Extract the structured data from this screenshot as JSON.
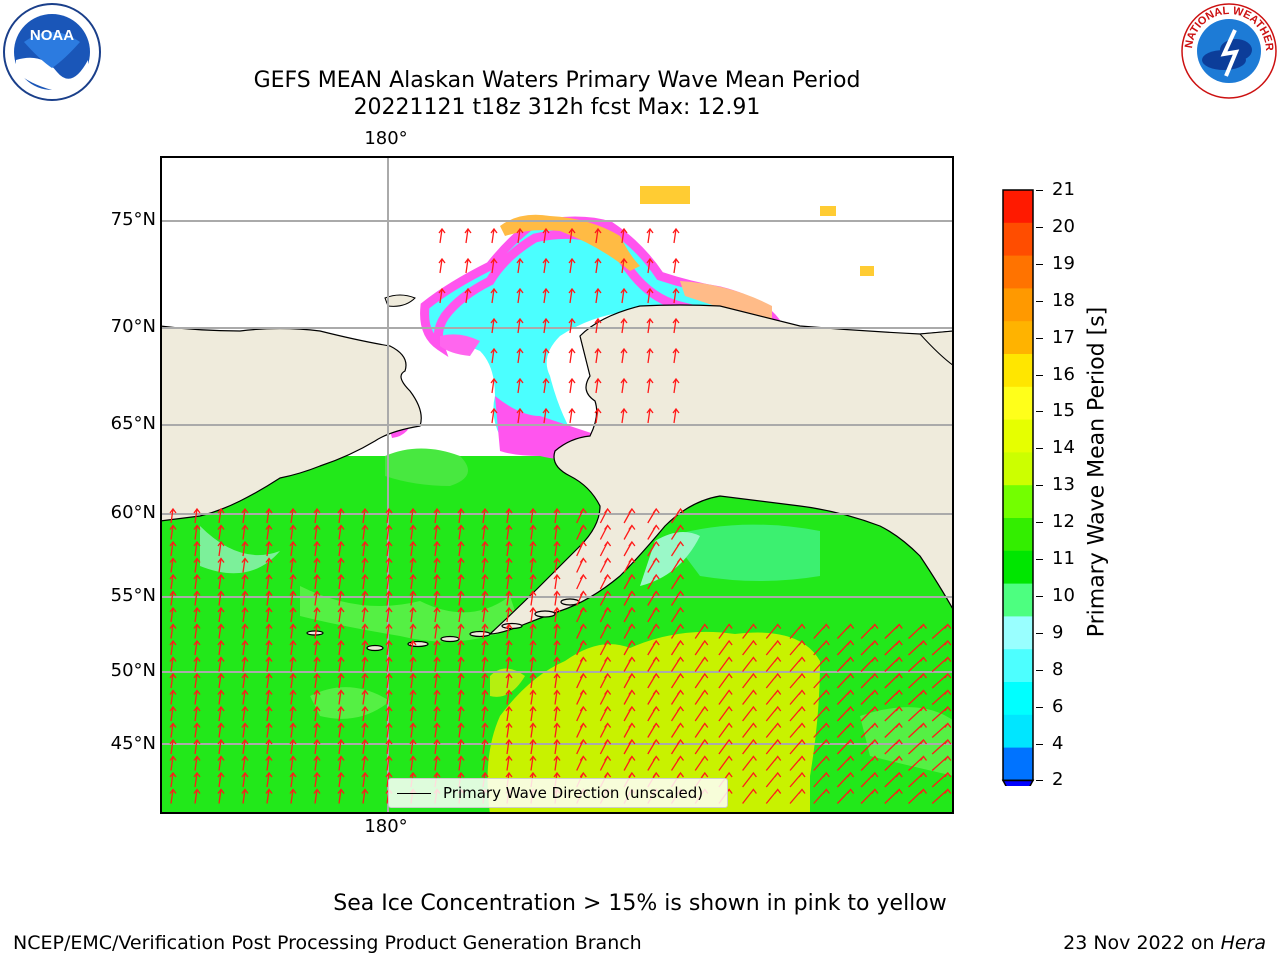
{
  "title": {
    "line1": "GEFS MEAN Alaskan Waters Primary Wave Mean Period",
    "line2": "20221121 t18z 312h fcst   Max: 12.91"
  },
  "logos": {
    "left": {
      "text": "NOAA",
      "icon": "noaa-logo-icon"
    },
    "right": {
      "text": "NATIONAL WEATHER SERVICE",
      "icon": "nws-logo-icon"
    }
  },
  "map": {
    "lon_labels": [
      "180°",
      "180°"
    ],
    "lat_labels": [
      "75°N",
      "70°N",
      "65°N",
      "60°N",
      "55°N",
      "50°N",
      "45°N"
    ],
    "legend_label": "Primary Wave Direction (unscaled)"
  },
  "colorbar": {
    "label": "Primary Wave Mean Period [s]",
    "ticks": [
      "21",
      "20",
      "19",
      "18",
      "17",
      "16",
      "15",
      "14",
      "13",
      "12",
      "11",
      "10",
      "9",
      "8",
      "6",
      "4",
      "2"
    ],
    "colors": [
      "#ff1a00",
      "#ff4d00",
      "#ff7300",
      "#ff9900",
      "#ffb300",
      "#ffe600",
      "#ffff1a",
      "#e6ff00",
      "#ccff00",
      "#73ff00",
      "#33ee00",
      "#00e600",
      "#4dff80",
      "#99ffff",
      "#4dffff",
      "#00ffff",
      "#00e6ff",
      "#0073ff"
    ],
    "extend_color": "#0000ff"
  },
  "footer": {
    "ice_note": "Sea Ice Concentration > 15% is shown in pink to yellow",
    "credit": "NCEP/EMC/Verification Post Processing Product Generation Branch",
    "date": "23 Nov 2022 on",
    "host": "Hera"
  }
}
